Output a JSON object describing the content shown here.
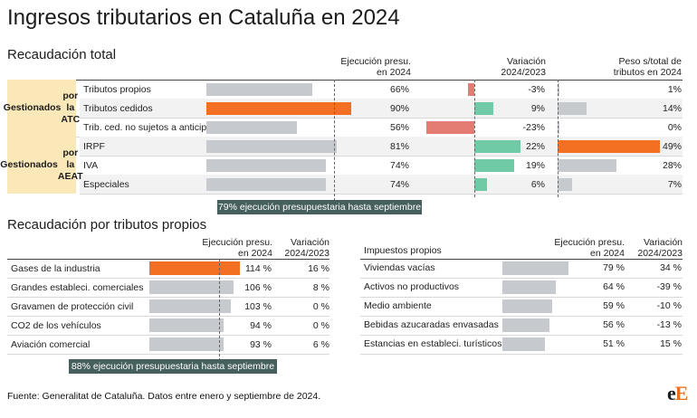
{
  "title": "Ingresos tributarios en Cataluña en 2024",
  "colors": {
    "highlight": "#f36f21",
    "bar": "#c6c9cd",
    "positive": "#6fcaa5",
    "negative": "#e57c73",
    "group_bg": "#fbe8b8",
    "note_bg": "#46605e",
    "row_alt": "#f2f2f2"
  },
  "section1": {
    "title": "Recaudación total",
    "headers": {
      "exec": [
        "Ejecución presu.",
        "en 2024"
      ],
      "var": [
        "Variación",
        "2024/2023"
      ],
      "weight": [
        "Peso s/total de",
        "tributos en 2024"
      ]
    },
    "groups": [
      {
        "label": [
          "Gestionados",
          "por la ATC"
        ]
      },
      {
        "label": [
          "Gestionados",
          "por la AEAT"
        ]
      }
    ],
    "rows": [
      {
        "label": "Tributos propios",
        "exec_label": "66%",
        "var_label": "-3%",
        "weight_label": "1%"
      },
      {
        "label": "Tributos cedidos",
        "exec_label": "90%",
        "var_label": "9%",
        "weight_label": "14%"
      },
      {
        "label": "Trib. ced. no sujetos a anticipos",
        "exec_label": "56%",
        "var_label": "-23%",
        "weight_label": "0%"
      },
      {
        "label": "IRPF",
        "exec_label": "81%",
        "var_label": "22%",
        "weight_label": "49%"
      },
      {
        "label": "IVA",
        "exec_label": "74%",
        "var_label": "19%",
        "weight_label": "28%"
      },
      {
        "label": "Especiales",
        "exec_label": "74%",
        "var_label": "6%",
        "weight_label": "7%"
      }
    ],
    "note": "79% ejecución presupuestaria hasta septiembre"
  },
  "section2": {
    "title": "Recaudación por tributos propios",
    "left": {
      "headers": {
        "exec": [
          "Ejecución presu.",
          "en 2024"
        ],
        "var": [
          "Variación",
          "2024/2023"
        ]
      },
      "rows": [
        {
          "label": "Gases de la industria",
          "exec_label": "114 %",
          "var_label": "16 %"
        },
        {
          "label": "Grandes estableci. comerciales",
          "exec_label": "106 %",
          "var_label": "8 %"
        },
        {
          "label": "Gravamen de protección civil",
          "exec_label": "103 %",
          "var_label": "0 %"
        },
        {
          "label": "CO2 de los vehículos",
          "exec_label": "94 %",
          "var_label": "0 %"
        },
        {
          "label": "Aviación comercial",
          "exec_label": "93 %",
          "var_label": "6 %"
        }
      ],
      "note": "88% ejecución presupuestaria hasta septiembre"
    },
    "right": {
      "headers": {
        "label": "Impuestos propios",
        "exec": [
          "Ejecución presu.",
          "en 2024"
        ],
        "var": [
          "Variación",
          "2024/2023"
        ]
      },
      "rows": [
        {
          "label": "Viviendas vacías",
          "exec_label": "79 %",
          "var_label": "34 %"
        },
        {
          "label": "Activos no productivos",
          "exec_label": "64 %",
          "var_label": "-39 %"
        },
        {
          "label": "Medio ambiente",
          "exec_label": "59 %",
          "var_label": "-10 %"
        },
        {
          "label": "Bebidas azucaradas envasadas",
          "exec_label": "56 %",
          "var_label": "-13 %"
        },
        {
          "label": "Estancias en estableci. turísticos",
          "exec_label": "51 %",
          "var_label": "15 %"
        }
      ]
    }
  },
  "source": "Fuente: Generalitat de Cataluña. Datos entre enero y septiembre de 2024.",
  "logo": {
    "e": "e",
    "E": "E"
  },
  "chart_data": [
    {
      "type": "bar",
      "title": "Recaudación total",
      "categories": [
        "Tributos propios",
        "Tributos cedidos",
        "Trib. ced. no sujetos a anticipos",
        "IRPF",
        "IVA",
        "Especiales"
      ],
      "series": [
        {
          "name": "Ejecución presu. en 2024",
          "values": [
            66,
            90,
            56,
            81,
            74,
            74
          ]
        },
        {
          "name": "Variación 2024/2023",
          "values": [
            -3,
            9,
            -23,
            22,
            19,
            6
          ]
        },
        {
          "name": "Peso s/total de tributos en 2024",
          "values": [
            1,
            14,
            0,
            49,
            28,
            7
          ]
        }
      ],
      "reference": 79
    },
    {
      "type": "bar",
      "title": "Recaudación por tributos propios",
      "categories": [
        "Gases de la industria",
        "Grandes estableci. comerciales",
        "Gravamen de protección civil",
        "CO2 de los vehículos",
        "Aviación comercial"
      ],
      "series": [
        {
          "name": "Ejecución presu. en 2024",
          "values": [
            114,
            106,
            103,
            94,
            93
          ]
        },
        {
          "name": "Variación 2024/2023",
          "values": [
            16,
            8,
            0,
            0,
            6
          ]
        }
      ],
      "reference": 88
    },
    {
      "type": "bar",
      "title": "Impuestos propios",
      "categories": [
        "Viviendas vacías",
        "Activos no productivos",
        "Medio ambiente",
        "Bebidas azucaradas envasadas",
        "Estancias en estableci. turísticos"
      ],
      "series": [
        {
          "name": "Ejecución presu. en 2024",
          "values": [
            79,
            64,
            59,
            56,
            51
          ]
        },
        {
          "name": "Variación 2024/2023",
          "values": [
            34,
            -39,
            -10,
            -13,
            15
          ]
        }
      ]
    }
  ]
}
